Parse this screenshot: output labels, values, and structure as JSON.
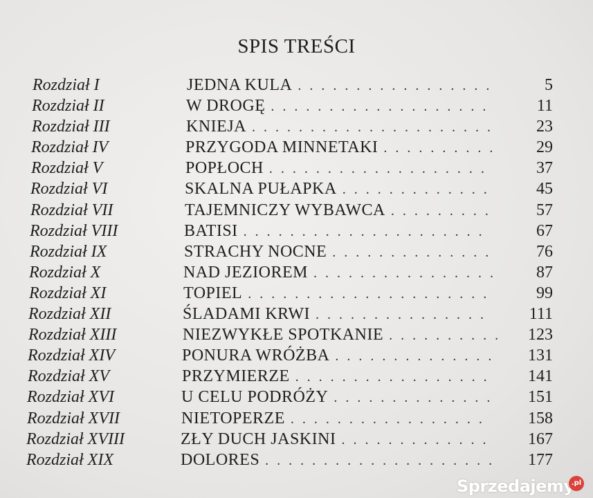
{
  "title": "SPIS TREŚCI",
  "entries": [
    {
      "chapter": "Rozdział I",
      "name": "JEDNA KULA",
      "page": "5"
    },
    {
      "chapter": "Rozdział II",
      "name": "W DROGĘ",
      "page": "11"
    },
    {
      "chapter": "Rozdział III",
      "name": "KNIEJA",
      "page": "23"
    },
    {
      "chapter": "Rozdział IV",
      "name": "PRZYGODA MINNETAKI",
      "page": "29"
    },
    {
      "chapter": "Rozdział V",
      "name": "POPŁOCH",
      "page": "37"
    },
    {
      "chapter": "Rozdział VI",
      "name": "SKALNA PUŁAPKA",
      "page": "45"
    },
    {
      "chapter": "Rozdział VII",
      "name": "TAJEMNICZY WYBAWCA",
      "page": "57"
    },
    {
      "chapter": "Rozdział VIII",
      "name": "BATISI",
      "page": "67"
    },
    {
      "chapter": "Rozdział IX",
      "name": "STRACHY NOCNE",
      "page": "76"
    },
    {
      "chapter": "Rozdział X",
      "name": "NAD JEZIOREM",
      "page": "87"
    },
    {
      "chapter": "Rozdział XI",
      "name": "TOPIEL",
      "page": "99"
    },
    {
      "chapter": "Rozdział XII",
      "name": "ŚLADAMI KRWI",
      "page": "111"
    },
    {
      "chapter": "Rozdział XIII",
      "name": "NIEZWYKŁE SPOTKANIE",
      "page": "123"
    },
    {
      "chapter": "Rozdział XIV",
      "name": "PONURA WRÓŻBA",
      "page": "131"
    },
    {
      "chapter": "Rozdział XV",
      "name": "PRZYMIERZE",
      "page": "141"
    },
    {
      "chapter": "Rozdział XVI",
      "name": "U CELU PODRÓŻY",
      "page": "151"
    },
    {
      "chapter": "Rozdział XVII",
      "name": "NIETOPERZE",
      "page": "158"
    },
    {
      "chapter": "Rozdział XVIII",
      "name": "ZŁY DUCH JASKINI",
      "page": "167"
    },
    {
      "chapter": "Rozdział XIX",
      "name": "DOLORES",
      "page": "177"
    }
  ],
  "watermark": {
    "text": "Sprzedajemy",
    "badge": ".pl",
    "badge_color": "#d9413a"
  }
}
